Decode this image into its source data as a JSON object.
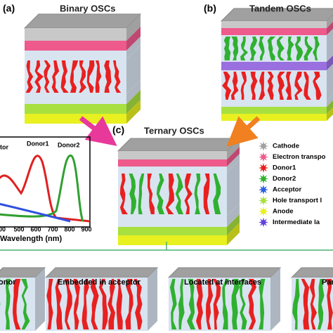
{
  "panels": [
    {
      "label": "(a)",
      "title": "Binary OSCs"
    },
    {
      "label": "(b)",
      "title": "Tandem OSCs"
    },
    {
      "label": "(c)",
      "title": "Ternary OSCs"
    }
  ],
  "legend": [
    "Cathode",
    "Electron transpo",
    "Donor1",
    "Donor2",
    "Acceptor",
    "Hole transport l",
    "Anode",
    "Intermediate la"
  ],
  "inset": {
    "labels": [
      "tor",
      "Donor1",
      "Donor2"
    ],
    "xticks": [
      "00",
      "500",
      "600",
      "700",
      "800",
      "900"
    ],
    "xlabel": "Wavelength (nm)"
  },
  "bottom": [
    "lonor",
    "Embedded in acceptor",
    "Located at interfaces",
    "Par"
  ]
}
